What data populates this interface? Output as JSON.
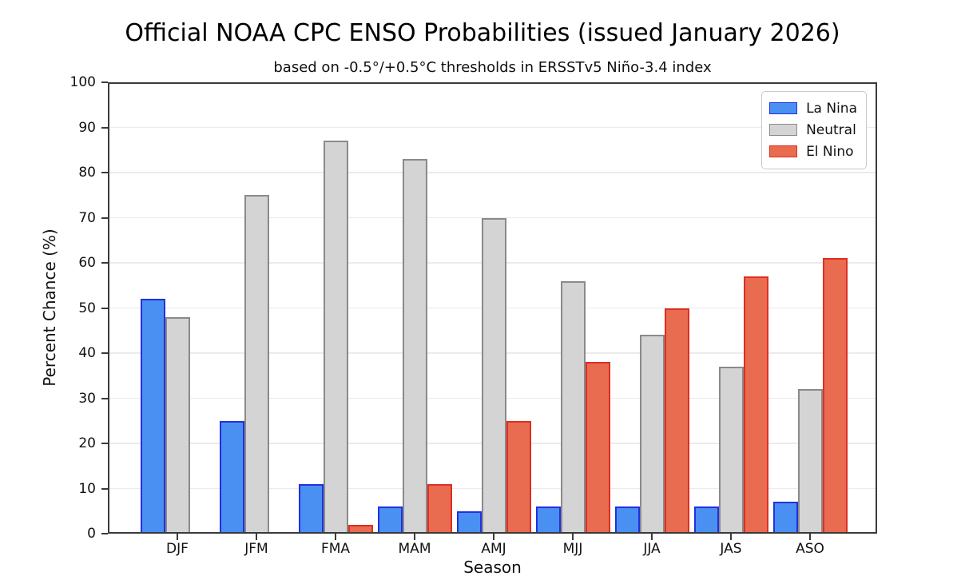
{
  "title": "Official NOAA CPC ENSO Probabilities (issued January 2026)",
  "subtitle": "based on -0.5°/+0.5°C thresholds in ERSSTv5 Niño-3.4 index",
  "chart_data": {
    "type": "bar",
    "title": "Official NOAA CPC ENSO Probabilities (issued January 2026)",
    "subtitle": "based on -0.5°/+0.5°C thresholds in ERSSTv5 Niño-3.4 index",
    "xlabel": "Season",
    "ylabel": "Percent Chance (%)",
    "categories": [
      "DJF",
      "JFM",
      "FMA",
      "MAM",
      "AMJ",
      "MJJ",
      "JJA",
      "JAS",
      "ASO"
    ],
    "series": [
      {
        "name": "La Nina",
        "fill": "#4a90f2",
        "edge": "#2230e0",
        "values": [
          52,
          25,
          11,
          6,
          5,
          6,
          6,
          6,
          7
        ]
      },
      {
        "name": "Neutral",
        "fill": "#d4d4d4",
        "edge": "#8a8a8a",
        "values": [
          48,
          75,
          87,
          83,
          70,
          56,
          44,
          37,
          32
        ]
      },
      {
        "name": "El Nino",
        "fill": "#e96b50",
        "edge": "#de2e22",
        "values": [
          0,
          0,
          2,
          11,
          25,
          38,
          50,
          57,
          61
        ]
      }
    ],
    "ylim": [
      0,
      100
    ],
    "yticks": [
      0,
      10,
      20,
      30,
      40,
      50,
      60,
      70,
      80,
      90,
      100
    ],
    "grid": true,
    "legend_position": "upper right",
    "legend": [
      "La Nina",
      "Neutral",
      "El Nino"
    ]
  }
}
